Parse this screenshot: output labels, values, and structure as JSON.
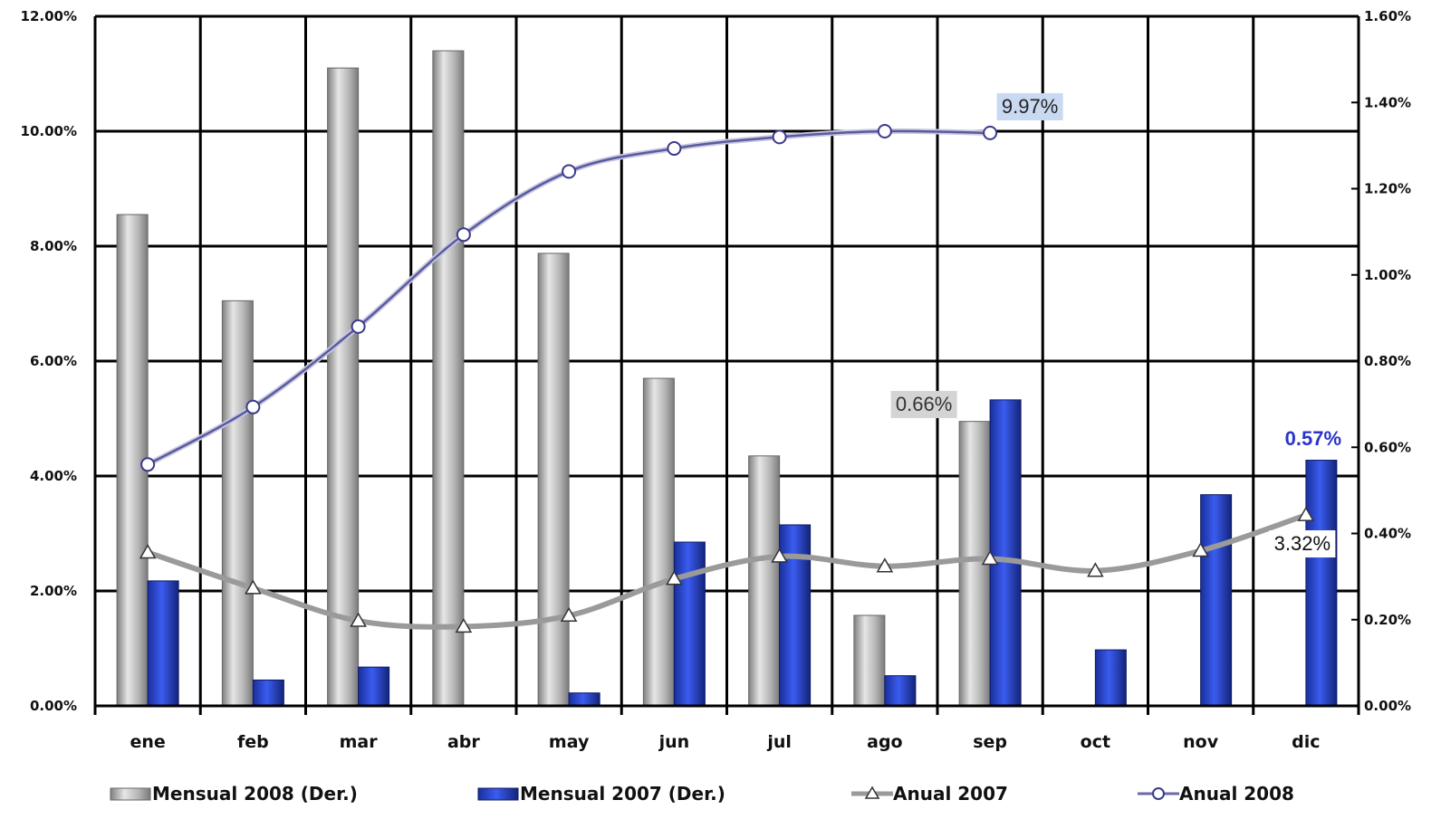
{
  "chart_data": {
    "type": "bar",
    "categories": [
      "ene",
      "feb",
      "mar",
      "abr",
      "may",
      "jun",
      "jul",
      "ago",
      "sep",
      "oct",
      "nov",
      "dic"
    ],
    "y_left": {
      "ylim": [
        0,
        12
      ],
      "ticks": [
        "0.00%",
        "2.00%",
        "4.00%",
        "6.00%",
        "8.00%",
        "10.00%",
        "12.00%"
      ]
    },
    "y_right": {
      "ylim": [
        0,
        1.6
      ],
      "ticks": [
        "0.00%",
        "0.20%",
        "0.40%",
        "0.60%",
        "0.80%",
        "1.00%",
        "1.20%",
        "1.40%",
        "1.60%"
      ]
    },
    "grid": true,
    "legend_position": "bottom",
    "series": [
      {
        "name": "Mensual 2008 (Der.)",
        "kind": "bar",
        "axis": "right",
        "color": "#a8a8a8",
        "values": [
          1.14,
          0.94,
          1.48,
          1.52,
          1.05,
          0.76,
          0.58,
          0.21,
          0.66,
          null,
          null,
          null
        ]
      },
      {
        "name": "Mensual 2007 (Der.)",
        "kind": "bar",
        "axis": "right",
        "color": "#2f4fd6",
        "values": [
          0.29,
          0.06,
          0.09,
          null,
          0.03,
          0.38,
          0.42,
          0.07,
          0.71,
          0.13,
          0.49,
          0.57
        ]
      },
      {
        "name": "Anual 2007",
        "kind": "line",
        "axis": "left",
        "color": "#9a9a9a",
        "marker": "triangle",
        "values": [
          2.67,
          2.05,
          1.48,
          1.38,
          1.57,
          2.21,
          2.6,
          2.43,
          2.56,
          2.35,
          2.7,
          3.32
        ]
      },
      {
        "name": "Anual 2008",
        "kind": "line",
        "axis": "left",
        "color": "#6a6aa8",
        "marker": "circle",
        "values": [
          4.2,
          5.2,
          6.6,
          8.2,
          9.3,
          9.7,
          9.9,
          10.0,
          9.97,
          null,
          null,
          null
        ]
      }
    ],
    "annotations": [
      {
        "text": "9.97%",
        "series": "Anual 2008",
        "category": "sep"
      },
      {
        "text": "0.66%",
        "series": "Mensual 2008 (Der.)",
        "category": "sep"
      },
      {
        "text": "0.57%",
        "series": "Mensual 2007 (Der.)",
        "category": "dic"
      },
      {
        "text": "3.32%",
        "series": "Anual 2007",
        "category": "dic"
      }
    ]
  }
}
